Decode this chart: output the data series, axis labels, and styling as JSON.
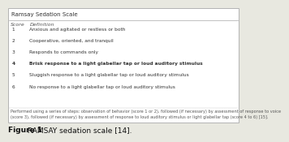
{
  "title": "Ramsay Sedation Scale",
  "col_score": "Score",
  "col_def": "Definition",
  "rows": [
    [
      "1",
      "Anxious and agitated or restless or both"
    ],
    [
      "2",
      "Cooperative, oriented, and tranquil"
    ],
    [
      "3",
      "Responds to commands only"
    ],
    [
      "4",
      "Brisk response to a light glabellar tap or loud auditory stimulus"
    ],
    [
      "5",
      "Sluggish response to a light glabellar tap or loud auditory stimulus"
    ],
    [
      "6",
      "No response to a light glabellar tap or loud auditory stimulus"
    ]
  ],
  "footnote_line1": "Performed using a series of steps: observation of behavior (score 1 or 2), followed (if necessary) by assessment of response to voice",
  "footnote_line2": "(score 3), followed (if necessary) by assessment of response to loud auditory stimulus or light glabellar tap (score 4 to 6) [15].",
  "caption_bold": "Figure 1",
  "caption_rest": " RAMSAY sedation scale [14].",
  "bold_row": 3,
  "bg_fig": "#e8e8e0",
  "bg_box": "#ffffff",
  "box_edge": "#aaaaaa",
  "title_fontsize": 5.0,
  "header_fontsize": 4.5,
  "row_fontsize": 4.2,
  "footnote_fontsize": 3.6,
  "caption_fontsize": 6.5,
  "text_color": "#333333",
  "header_color": "#555555"
}
